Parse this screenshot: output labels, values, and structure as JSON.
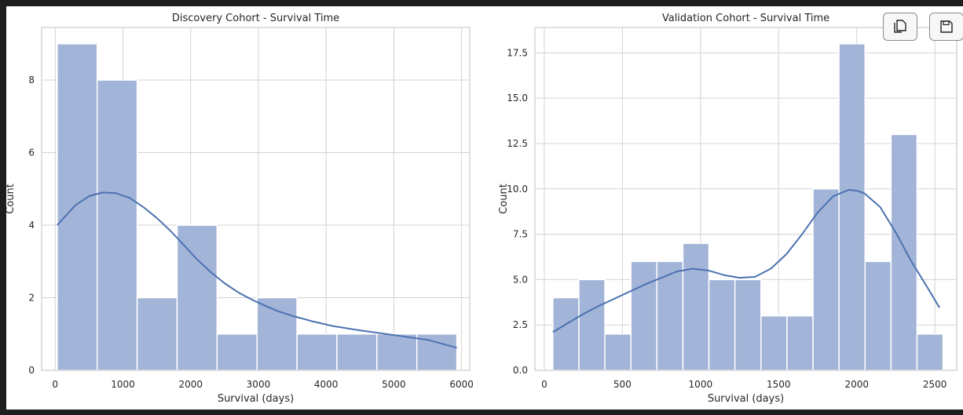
{
  "toolbar": {
    "copy_icon": "copy-icon",
    "save_icon": "floppy-disk-icon"
  },
  "colors": {
    "bar_fill": "#a2b4d8",
    "bar_edge": "#ffffff",
    "kde_line": "#4c72b0",
    "grid": "#d3d3d3",
    "axes_edge": "#cccccc",
    "text": "#262626"
  },
  "chart_data": [
    {
      "type": "bar",
      "subtype": "histogram",
      "title": "Discovery Cohort - Survival Time",
      "xlabel": "Survival (days)",
      "ylabel": "Count",
      "xlim": [
        -200,
        6120
      ],
      "ylim": [
        0,
        9.45
      ],
      "xticks": [
        0,
        1000,
        2000,
        3000,
        4000,
        5000,
        6000
      ],
      "xtick_labels": [
        "0",
        "1000",
        "2000",
        "3000",
        "4000",
        "5000",
        "6000"
      ],
      "yticks": [
        0,
        2,
        4,
        6,
        8
      ],
      "ytick_labels": [
        "0",
        "2",
        "4",
        "6",
        "8"
      ],
      "grid": true,
      "bin_edges": [
        30,
        620,
        1210,
        1800,
        2390,
        2980,
        3570,
        4160,
        4750,
        5340,
        5930
      ],
      "counts": [
        9,
        8,
        2,
        4,
        1,
        2,
        1,
        1,
        1,
        1
      ],
      "kde": {
        "x": [
          30,
          300,
          500,
          700,
          900,
          1100,
          1300,
          1500,
          1700,
          1900,
          2100,
          2300,
          2500,
          2700,
          2900,
          3100,
          3300,
          3500,
          3800,
          4100,
          4500,
          5000,
          5500,
          5930
        ],
        "y": [
          4.0,
          4.55,
          4.8,
          4.9,
          4.88,
          4.75,
          4.5,
          4.2,
          3.85,
          3.45,
          3.05,
          2.7,
          2.4,
          2.15,
          1.95,
          1.78,
          1.62,
          1.5,
          1.35,
          1.22,
          1.1,
          0.97,
          0.84,
          0.62
        ]
      }
    },
    {
      "type": "bar",
      "subtype": "histogram",
      "title": "Validation Cohort - Survival Time",
      "xlabel": "Survival (days)",
      "ylabel": "Count",
      "xlim": [
        -60,
        2640
      ],
      "ylim": [
        0,
        18.9
      ],
      "xticks": [
        0,
        500,
        1000,
        1500,
        2000,
        2500
      ],
      "xtick_labels": [
        "0",
        "500",
        "1000",
        "1500",
        "2000",
        "2500"
      ],
      "yticks": [
        0,
        2.5,
        5,
        7.5,
        10,
        12.5,
        15,
        17.5
      ],
      "ytick_labels": [
        "0.0",
        "2.5",
        "5.0",
        "7.5",
        "10.0",
        "12.5",
        "15.0",
        "17.5"
      ],
      "grid": true,
      "bin_edges": [
        55,
        221.5,
        388,
        554.5,
        721,
        887.5,
        1054,
        1220.5,
        1387,
        1553.5,
        1720,
        1886.5,
        2053,
        2219.5,
        2386,
        2552.5
      ],
      "counts": [
        4,
        5,
        2,
        6,
        6,
        7,
        5,
        5,
        3,
        3,
        10,
        18,
        6,
        13,
        2
      ],
      "kde": {
        "x": [
          55,
          150,
          250,
          350,
          450,
          550,
          650,
          750,
          850,
          950,
          1050,
          1150,
          1250,
          1350,
          1450,
          1550,
          1650,
          1750,
          1850,
          1950,
          2000,
          2050,
          2150,
          2250,
          2350,
          2450,
          2530
        ],
        "y": [
          2.1,
          2.6,
          3.1,
          3.55,
          3.95,
          4.35,
          4.75,
          5.1,
          5.45,
          5.6,
          5.5,
          5.25,
          5.1,
          5.15,
          5.6,
          6.4,
          7.5,
          8.7,
          9.6,
          9.95,
          9.9,
          9.75,
          9.0,
          7.6,
          6.0,
          4.6,
          3.45
        ]
      }
    }
  ]
}
